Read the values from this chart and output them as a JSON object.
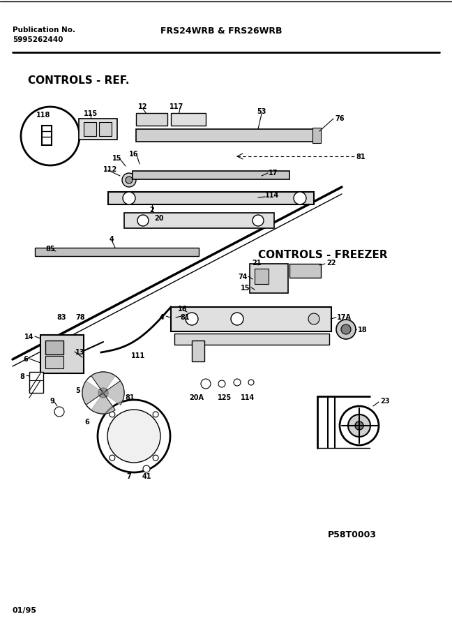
{
  "pub_no_label": "Publication No.",
  "pub_no_value": "5995262440",
  "model_label": "FRS24WRB & FRS26WRB",
  "footer_left": "01/95",
  "footer_right": "P58T0003",
  "section_ref": "CONTROLS - REF.",
  "section_freezer": "CONTROLS - FREEZER",
  "bg_color": "#ffffff",
  "line_color": "#000000",
  "text_color": "#000000",
  "fig_width": 6.48,
  "fig_height": 9.0,
  "dpi": 100
}
